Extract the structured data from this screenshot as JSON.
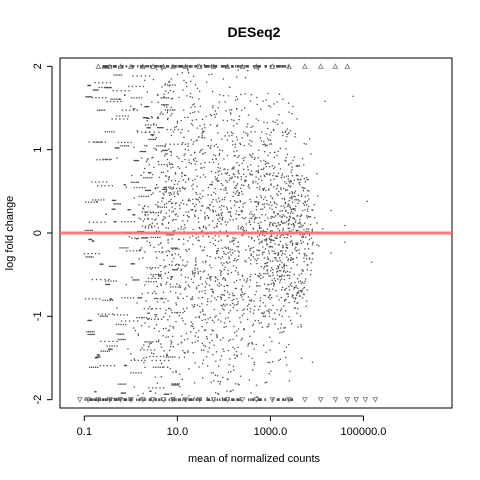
{
  "chart_data": {
    "type": "scatter",
    "title": "DESeq2",
    "xlabel": "mean of normalized counts",
    "ylabel": "log fold change",
    "x_scale": "log10",
    "xlim": [
      0.03,
      8000000
    ],
    "ylim": [
      -2.1,
      2.1
    ],
    "x_ticks": [
      {
        "value": 0.1,
        "label": "0.1"
      },
      {
        "value": 10,
        "label": "10.0"
      },
      {
        "value": 1000,
        "label": "1000.0"
      },
      {
        "value": 100000,
        "label": "100000.0"
      }
    ],
    "y_ticks": [
      {
        "value": -2,
        "label": "-2"
      },
      {
        "value": -1,
        "label": "-1"
      },
      {
        "value": 0,
        "label": "0"
      },
      {
        "value": 1,
        "label": "1"
      },
      {
        "value": 2,
        "label": "2"
      }
    ],
    "reference_line": {
      "y": 0,
      "color": "#ff6a6a"
    },
    "point_color": "#4d4d4d",
    "series": [
      {
        "kind": "points",
        "description_points": [
          [
            0.5,
            0.9
          ],
          [
            0.5,
            -0.9
          ],
          [
            0.8,
            0.55
          ],
          [
            0.8,
            -0.62
          ],
          [
            1.0,
            1.52
          ],
          [
            1.0,
            -1.45
          ],
          [
            1.5,
            0.34
          ],
          [
            1.5,
            -0.31
          ],
          [
            2.0,
            1.05
          ],
          [
            2.0,
            -1.08
          ],
          [
            3.0,
            0.48
          ],
          [
            3.0,
            -0.52
          ],
          [
            4.0,
            1.21
          ],
          [
            4.0,
            -1.18
          ],
          [
            5.0,
            0.73
          ],
          [
            5.0,
            -0.71
          ],
          [
            7.0,
            1.71
          ],
          [
            7.0,
            -1.63
          ],
          [
            9.0,
            0.22
          ],
          [
            9.0,
            -0.25
          ],
          [
            12.0,
            1.35
          ],
          [
            12.0,
            -1.31
          ],
          [
            15.0,
            0.61
          ],
          [
            15.0,
            -0.66
          ],
          [
            20.0,
            1.12
          ],
          [
            20.0,
            -1.07
          ],
          [
            25.0,
            0.41
          ],
          [
            25.0,
            -0.38
          ],
          [
            35.0,
            0.95
          ],
          [
            35.0,
            -0.92
          ],
          [
            50.0,
            0.58
          ],
          [
            50.0,
            -0.54
          ],
          [
            70.0,
            1.28
          ],
          [
            70.0,
            -1.22
          ],
          [
            100.0,
            0.32
          ],
          [
            100.0,
            -0.36
          ],
          [
            150.0,
            0.77
          ],
          [
            150.0,
            -0.81
          ],
          [
            200.0,
            0.45
          ],
          [
            200.0,
            -0.47
          ],
          [
            300.0,
            0.63
          ],
          [
            300.0,
            -0.59
          ],
          [
            500.0,
            0.28
          ],
          [
            500.0,
            -0.33
          ],
          [
            800.0,
            0.51
          ],
          [
            800.0,
            -0.49
          ],
          [
            1200.0,
            0.19
          ],
          [
            1200.0,
            -0.22
          ],
          [
            2000.0,
            0.42
          ],
          [
            2000.0,
            -0.39
          ],
          [
            3500.0,
            0.15
          ],
          [
            3500.0,
            -0.17
          ],
          [
            6000.0,
            0.34
          ],
          [
            6000.0,
            -0.31
          ],
          [
            10000.0,
            0.12
          ],
          [
            10000.0,
            -0.14
          ],
          [
            20000.0,
            0.27
          ],
          [
            20000.0,
            -0.24
          ],
          [
            40000.0,
            0.09
          ],
          [
            40000.0,
            -0.11
          ],
          [
            60000.0,
            1.64
          ],
          [
            120000.0,
            0.38
          ],
          [
            150000.0,
            -0.35
          ],
          [
            8000.0,
            -1.55
          ],
          [
            15000.0,
            1.58
          ]
        ]
      },
      {
        "kind": "clipped-top",
        "marker": "triangle-up",
        "x": [
          0.2,
          0.35,
          0.6,
          1.0,
          1.8,
          3.0,
          5.0,
          8.0,
          15.0,
          30.0,
          60.0,
          120.0,
          250.0,
          500.0,
          1100.0,
          2500.0,
          5500.0,
          12000.0,
          25000.0,
          45000.0
        ]
      },
      {
        "kind": "clipped-bottom",
        "marker": "triangle-down",
        "x": [
          0.08,
          0.12,
          0.2,
          0.35,
          0.6,
          1.0,
          1.8,
          3.0,
          5.0,
          8.0,
          15.0,
          30.0,
          60.0,
          120.0,
          250.0,
          500.0,
          1100.0,
          2500.0,
          5500.0,
          12000.0,
          25000.0,
          45000.0,
          70000.0,
          110000.0,
          180000.0
        ]
      }
    ]
  }
}
